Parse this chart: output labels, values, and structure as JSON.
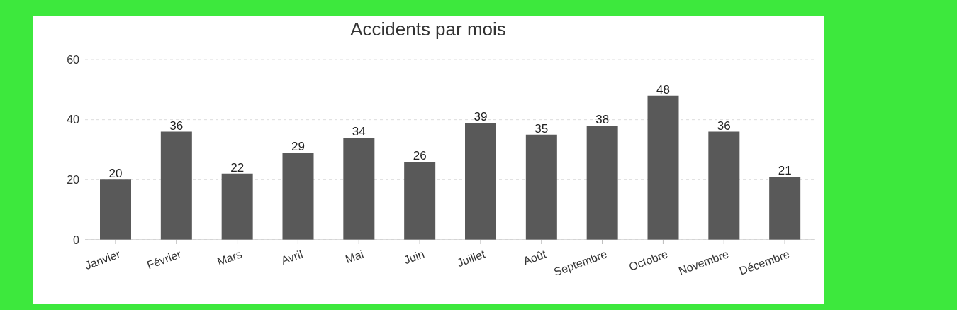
{
  "chart_data": {
    "type": "bar",
    "title": "Accidents par mois",
    "categories": [
      "Janvier",
      "Février",
      "Mars",
      "Avril",
      "Mai",
      "Juin",
      "Juillet",
      "Août",
      "Septembre",
      "Octobre",
      "Novembre",
      "Décembre"
    ],
    "values": [
      20,
      36,
      22,
      29,
      34,
      26,
      39,
      35,
      38,
      48,
      36,
      21
    ],
    "color": "#595959",
    "ylim": [
      0,
      60
    ],
    "yticks": [
      0,
      20,
      40,
      60
    ],
    "grid": "y",
    "data_labels": true,
    "legend": false
  }
}
